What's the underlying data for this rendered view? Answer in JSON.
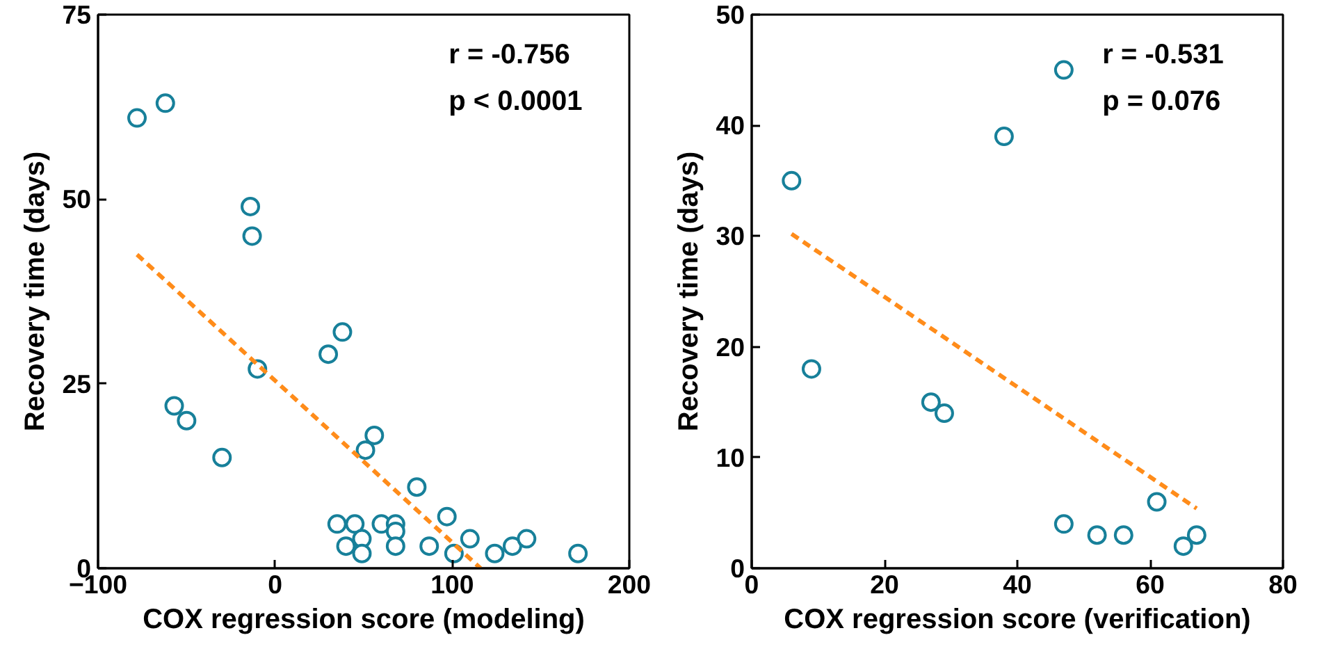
{
  "chart_data": [
    {
      "type": "scatter",
      "xlabel": "COX regression score (modeling)",
      "ylabel": "Recovery time (days)",
      "xlim": [
        -100,
        200
      ],
      "ylim": [
        0,
        75
      ],
      "xticks": [
        -100,
        0,
        100,
        200
      ],
      "yticks": [
        0,
        25,
        50,
        75
      ],
      "grid": false,
      "annotations": [
        "r = -0.756",
        "p < 0.0001"
      ],
      "series": [
        {
          "marker": "circle",
          "color": "#17809a",
          "x": [
            -78,
            -62,
            -14,
            -13,
            30,
            38,
            -10,
            -57,
            -50,
            -30,
            51,
            56,
            80,
            97,
            35,
            45,
            60,
            68,
            68,
            40,
            49,
            49,
            68,
            87,
            101,
            110,
            124,
            134,
            142,
            171
          ],
          "values": [
            61,
            63,
            49,
            45,
            29,
            32,
            27,
            22,
            20,
            15,
            16,
            18,
            11,
            7,
            6,
            6,
            6,
            6,
            5,
            3,
            4,
            2,
            3,
            3,
            2,
            4,
            2,
            3,
            4,
            2
          ]
        },
        {
          "type": "line",
          "color": "#ff8c1a",
          "line_style": "dashed",
          "x": [
            -78,
            116
          ],
          "values": [
            42.5,
            0
          ]
        }
      ]
    },
    {
      "type": "scatter",
      "xlabel": "COX regression score (verification)",
      "ylabel": "Recovery time (days)",
      "xlim": [
        0,
        80
      ],
      "ylim": [
        0,
        50
      ],
      "xticks": [
        0,
        20,
        40,
        60,
        80
      ],
      "yticks": [
        0,
        10,
        20,
        30,
        40,
        50
      ],
      "grid": false,
      "annotations": [
        "r  = -0.531",
        "p = 0.076"
      ],
      "series": [
        {
          "marker": "circle",
          "color": "#17809a",
          "x": [
            6,
            9,
            27,
            29,
            38,
            47,
            47,
            52,
            56,
            61,
            65,
            67
          ],
          "values": [
            35,
            18,
            15,
            14,
            39,
            45,
            4,
            3,
            3,
            6,
            2,
            3
          ]
        },
        {
          "type": "line",
          "color": "#ff8c1a",
          "line_style": "dashed",
          "x": [
            6,
            67
          ],
          "values": [
            30.2,
            5.4
          ]
        }
      ]
    }
  ]
}
